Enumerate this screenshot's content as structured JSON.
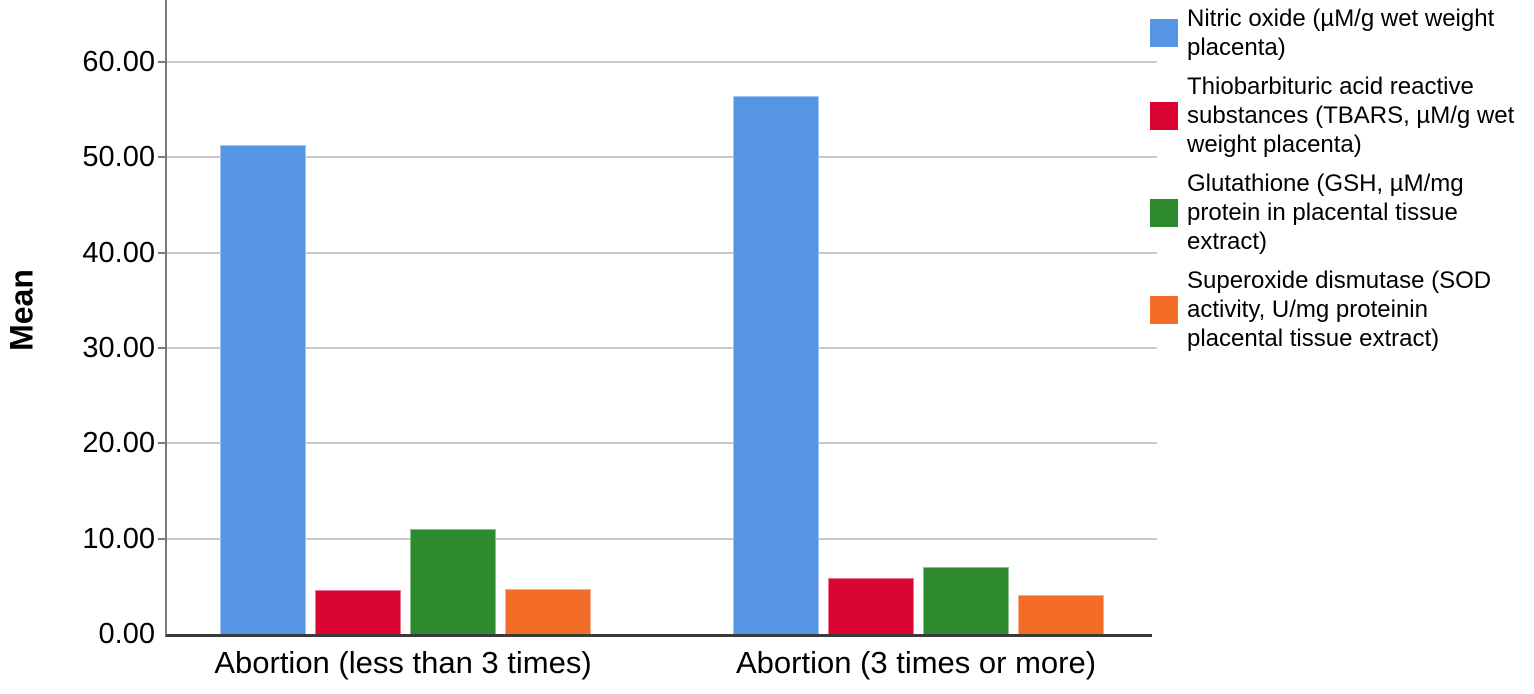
{
  "figure": {
    "background": "#ffffff",
    "grid_color": "#c9c9c9",
    "y_axis_color": "#7a7a7a",
    "x_axis_color": "#3a3a3a"
  },
  "chart_data": {
    "type": "bar",
    "title": "",
    "xlabel": "",
    "ylabel": "Mean",
    "ylim": [
      0,
      66.5
    ],
    "grid": "horizontal",
    "legend_position": "right",
    "categories": [
      "Abortion (less than 3 times)",
      "Abortion (3 times or more)"
    ],
    "y_ticks": [
      "0.00",
      "10.00",
      "20.00",
      "30.00",
      "40.00",
      "50.00",
      "60.00"
    ],
    "series": [
      {
        "name": "Nitric oxide (µM/g wet weight placenta)",
        "color": "#5595E3",
        "values": [
          51.3,
          56.4
        ]
      },
      {
        "name": "Thiobarbituric acid reactive substances (TBARS, µM/g wet weight placenta)",
        "color": "#DA0533",
        "values": [
          4.6,
          5.9
        ]
      },
      {
        "name": "Glutathione (GSH, µM/mg protein in placental tissue extract)",
        "color": "#2D8A2D",
        "values": [
          11.0,
          7.0
        ]
      },
      {
        "name": "Superoxide dismutase (SOD activity, U/mg proteinin placental tissue extract)",
        "color": "#F36D28",
        "values": [
          4.7,
          4.1
        ]
      }
    ]
  }
}
